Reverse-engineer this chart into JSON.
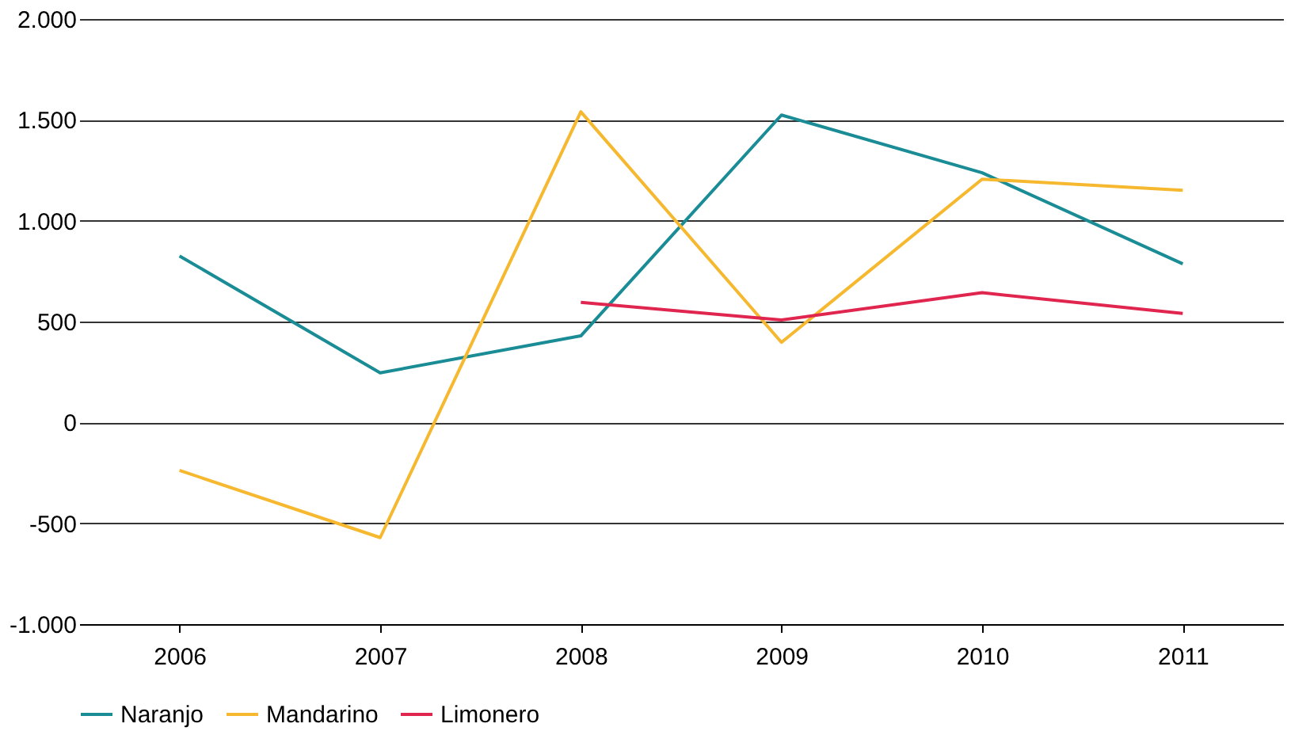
{
  "chart_data": {
    "type": "line",
    "categories": [
      "2006",
      "2007",
      "2008",
      "2009",
      "2010",
      "2011"
    ],
    "series": [
      {
        "name": "Naranjo",
        "color": "#1a8c96",
        "values": [
          825,
          246,
          429,
          1524,
          1238,
          786
        ]
      },
      {
        "name": "Mandarino",
        "color": "#f5b82e",
        "values": [
          -238,
          -571,
          1540,
          397,
          1206,
          1151
        ]
      },
      {
        "name": "Limonero",
        "color": "#e0254f",
        "values": [
          null,
          null,
          595,
          508,
          643,
          540
        ]
      }
    ],
    "ylim": [
      -1000,
      2000
    ],
    "yticks": [
      {
        "value": -1000,
        "label": "-1.000"
      },
      {
        "value": -500,
        "label": "-500"
      },
      {
        "value": 0,
        "label": "0"
      },
      {
        "value": 500,
        "label": "500"
      },
      {
        "value": 1000,
        "label": "1.000"
      },
      {
        "value": 1500,
        "label": "1.500"
      },
      {
        "value": 2000,
        "label": "2.000"
      }
    ],
    "grid": "y",
    "legend": "bottom",
    "marker": "none",
    "line_style": "solid"
  }
}
